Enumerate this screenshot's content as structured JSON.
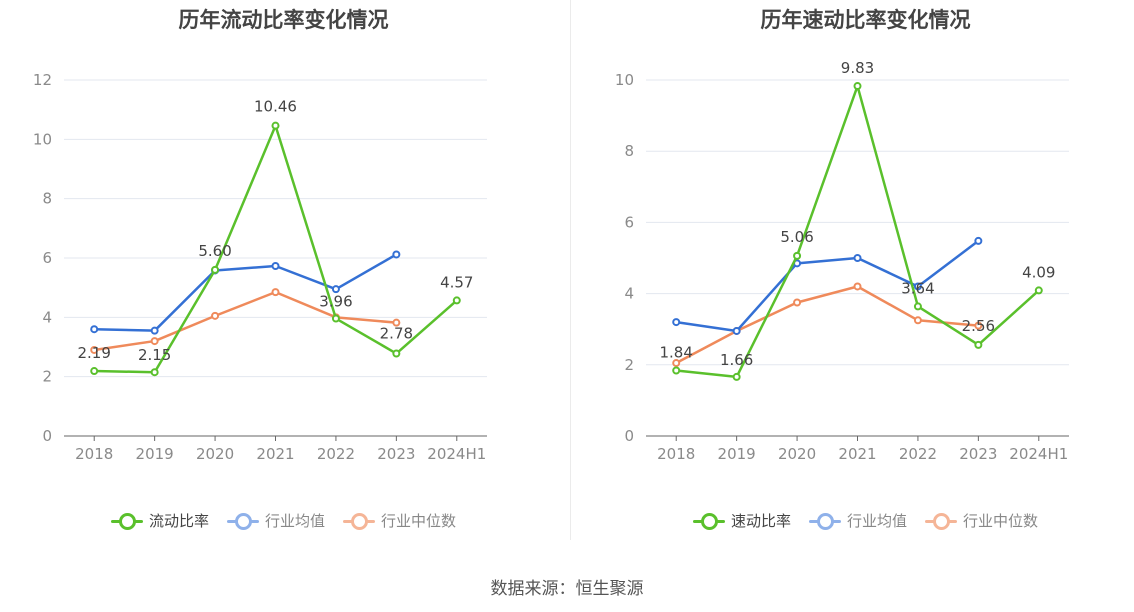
{
  "source_text": "数据来源：恒生聚源",
  "colors": {
    "green": "#5ac02c",
    "blue": "#3470d4",
    "orange": "#ef8a5b"
  },
  "charts": [
    {
      "id": "left",
      "chart_data": {
        "type": "line",
        "title": "历年流动比率变化情况",
        "categories": [
          "2018",
          "2019",
          "2020",
          "2021",
          "2022",
          "2023",
          "2024H1"
        ],
        "ylim": [
          0,
          12
        ],
        "yticks": [
          0,
          2,
          4,
          6,
          8,
          10,
          12
        ],
        "series": [
          {
            "name": "流动比率",
            "color": "#5ac02c",
            "values": [
              2.19,
              2.15,
              5.6,
              10.46,
              3.96,
              2.78,
              4.57
            ],
            "labels": [
              "2.19",
              "2.15",
              "5.60",
              "10.46",
              "3.96",
              "2.78",
              "4.57"
            ]
          },
          {
            "name": "行业均值",
            "color": "#3470d4",
            "legend_color": "#8fb1ea",
            "values": [
              3.6,
              3.55,
              5.58,
              5.73,
              4.95,
              6.12,
              null
            ]
          },
          {
            "name": "行业中位数",
            "color": "#ef8a5b",
            "legend_color": "#f5b597",
            "values": [
              2.9,
              3.2,
              4.05,
              4.85,
              4.0,
              3.82,
              null
            ]
          }
        ]
      }
    },
    {
      "id": "right",
      "chart_data": {
        "type": "line",
        "title": "历年速动比率变化情况",
        "categories": [
          "2018",
          "2019",
          "2020",
          "2021",
          "2022",
          "2023",
          "2024H1"
        ],
        "ylim": [
          0,
          10
        ],
        "yticks": [
          0,
          2,
          4,
          6,
          8,
          10
        ],
        "series": [
          {
            "name": "速动比率",
            "color": "#5ac02c",
            "values": [
              1.84,
              1.66,
              5.06,
              9.83,
              3.64,
              2.56,
              4.09
            ],
            "labels": [
              "1.84",
              "1.66",
              "5.06",
              "9.83",
              "3.64",
              "2.56",
              "4.09"
            ]
          },
          {
            "name": "行业均值",
            "color": "#3470d4",
            "legend_color": "#8fb1ea",
            "values": [
              3.2,
              2.95,
              4.85,
              5.0,
              4.2,
              5.48,
              null
            ]
          },
          {
            "name": "行业中位数",
            "color": "#ef8a5b",
            "legend_color": "#f5b597",
            "values": [
              2.05,
              2.95,
              3.75,
              4.2,
              3.25,
              3.1,
              null
            ]
          }
        ]
      }
    }
  ]
}
